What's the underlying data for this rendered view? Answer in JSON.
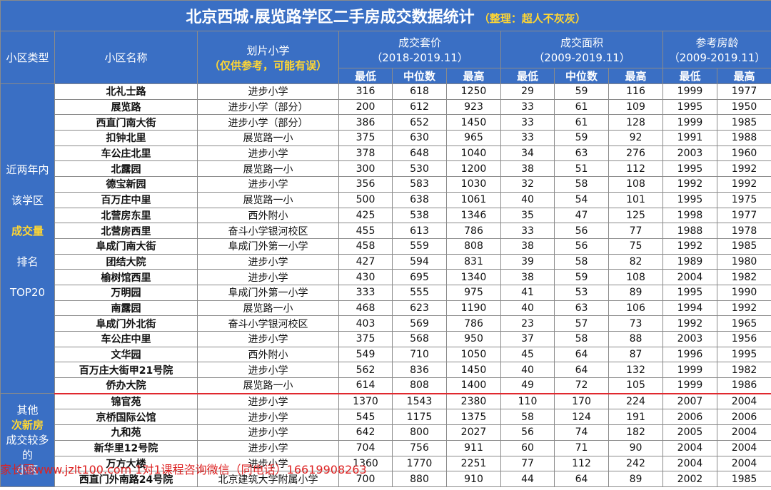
{
  "title": "北京西城·展览路学区二手房成交数据统计",
  "title_note": "（整理：超人不灰灰）",
  "headers": {
    "type": "小区类型",
    "name": "小区名称",
    "school": "划片小学",
    "school_note": "（仅供参考，可能有误）",
    "price": "成交套价",
    "price_range": "（2018-2019.11）",
    "area": "成交面积",
    "area_range": "（2009-2019.11）",
    "age": "参考房龄",
    "age_range": "（2009-2019.11）",
    "min": "最低",
    "median": "中位数",
    "max": "最高"
  },
  "group1_label": [
    "近两年内",
    "该学区",
    "成交量",
    "排名",
    "TOP20"
  ],
  "group2_label": [
    "其他",
    "次新房",
    "成交较多",
    "的",
    "小区"
  ],
  "rows1": [
    [
      "北礼士路",
      "进步小学",
      "316",
      "618",
      "1250",
      "29",
      "59",
      "116",
      "1999",
      "1977"
    ],
    [
      "展览路",
      "进步小学（部分）",
      "200",
      "612",
      "923",
      "33",
      "61",
      "109",
      "1995",
      "1950"
    ],
    [
      "西直门南大街",
      "进步小学（部分）",
      "386",
      "652",
      "1450",
      "33",
      "61",
      "128",
      "1999",
      "1985"
    ],
    [
      "扣钟北里",
      "展览路一小",
      "375",
      "630",
      "965",
      "33",
      "59",
      "92",
      "1991",
      "1988"
    ],
    [
      "车公庄北里",
      "进步小学",
      "378",
      "648",
      "1040",
      "34",
      "63",
      "276",
      "2003",
      "1960"
    ],
    [
      "北露园",
      "展览路一小",
      "300",
      "530",
      "1200",
      "38",
      "51",
      "112",
      "1995",
      "1992"
    ],
    [
      "德宝新园",
      "进步小学",
      "356",
      "583",
      "1030",
      "32",
      "58",
      "108",
      "1992",
      "1992"
    ],
    [
      "百万庄中里",
      "展览路一小",
      "500",
      "638",
      "1061",
      "40",
      "54",
      "101",
      "1995",
      "1975"
    ],
    [
      "北营房东里",
      "西外附小",
      "425",
      "538",
      "1346",
      "35",
      "47",
      "125",
      "1998",
      "1977"
    ],
    [
      "北营房西里",
      "奋斗小学银河校区",
      "455",
      "613",
      "786",
      "33",
      "56",
      "77",
      "1988",
      "1978"
    ],
    [
      "阜成门南大街",
      "阜成门外第一小学",
      "458",
      "559",
      "808",
      "38",
      "56",
      "75",
      "1992",
      "1985"
    ],
    [
      "团结大院",
      "进步小学",
      "427",
      "594",
      "831",
      "39",
      "58",
      "82",
      "1989",
      "1980"
    ],
    [
      "榆树馆西里",
      "进步小学",
      "430",
      "695",
      "1340",
      "38",
      "59",
      "108",
      "2004",
      "1982"
    ],
    [
      "万明园",
      "阜成门外第一小学",
      "333",
      "555",
      "975",
      "41",
      "53",
      "89",
      "1995",
      "1990"
    ],
    [
      "南露园",
      "展览路一小",
      "468",
      "623",
      "1190",
      "40",
      "63",
      "106",
      "1994",
      "1992"
    ],
    [
      "阜成门外北街",
      "奋斗小学银河校区",
      "403",
      "569",
      "786",
      "23",
      "57",
      "73",
      "1992",
      "1965"
    ],
    [
      "车公庄中里",
      "进步小学",
      "375",
      "568",
      "950",
      "37",
      "58",
      "88",
      "2003",
      "1956"
    ],
    [
      "文华园",
      "西外附小",
      "549",
      "710",
      "1050",
      "45",
      "64",
      "87",
      "1996",
      "1995"
    ],
    [
      "百万庄大街甲21号院",
      "进步小学",
      "562",
      "836",
      "1450",
      "40",
      "64",
      "132",
      "1999",
      "1982"
    ],
    [
      "侨办大院",
      "展览路一小",
      "614",
      "808",
      "1400",
      "49",
      "72",
      "105",
      "1999",
      "1986"
    ]
  ],
  "rows2": [
    [
      "锦官苑",
      "进步小学",
      "1370",
      "1543",
      "2380",
      "110",
      "170",
      "224",
      "2007",
      "2004"
    ],
    [
      "京桥国际公馆",
      "进步小学",
      "545",
      "1175",
      "1375",
      "58",
      "124",
      "191",
      "2006",
      "2006"
    ],
    [
      "九和苑",
      "进步小学",
      "642",
      "800",
      "2027",
      "56",
      "74",
      "182",
      "2005",
      "2004"
    ],
    [
      "新华里12号院",
      "进步小学",
      "704",
      "756",
      "911",
      "60",
      "71",
      "90",
      "2004",
      "2004"
    ],
    [
      "万方大楼",
      "进步小学",
      "1360",
      "1770",
      "2251",
      "77",
      "112",
      "242",
      "2004",
      "2004"
    ],
    [
      "西直门外南路24号院",
      "北京建筑大学附属小学",
      "700",
      "880",
      "910",
      "44",
      "64",
      "89",
      "2002",
      "1985"
    ]
  ],
  "watermark": "家长圈www.jzlt100.com    1对1课程咨询微信（同电话）16619908263"
}
